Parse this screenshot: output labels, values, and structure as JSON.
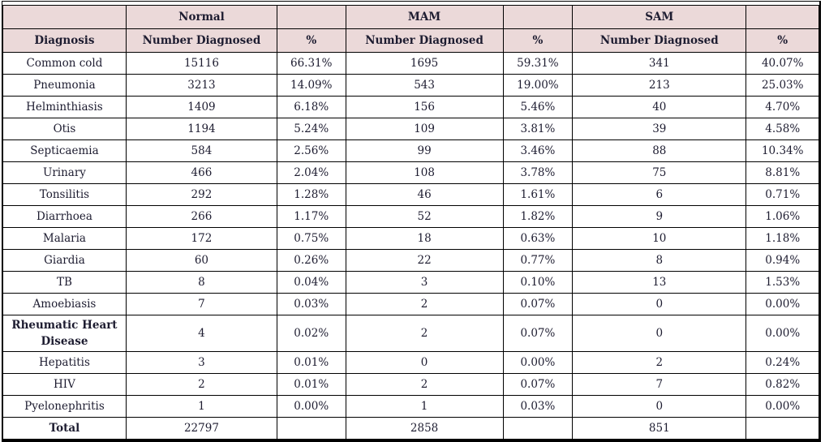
{
  "colors": {
    "header_bg": "#ebd9d9",
    "text": "#1d1c30",
    "border": "#000000"
  },
  "table": {
    "group_headers": [
      "",
      "Normal",
      "",
      "MAM",
      "",
      "SAM",
      ""
    ],
    "column_headers": [
      "Diagnosis",
      "Number Diagnosed",
      "%",
      "Number Diagnosed",
      "%",
      "Number Diagnosed",
      "%"
    ],
    "rows": [
      [
        "Common cold",
        "15116",
        "66.31%",
        "1695",
        "59.31%",
        "341",
        "40.07%"
      ],
      [
        "Pneumonia",
        "3213",
        "14.09%",
        "543",
        "19.00%",
        "213",
        "25.03%"
      ],
      [
        "Helminthiasis",
        "1409",
        "6.18%",
        "156",
        "5.46%",
        "40",
        "4.70%"
      ],
      [
        "Otis",
        "1194",
        "5.24%",
        "109",
        "3.81%",
        "39",
        "4.58%"
      ],
      [
        "Septicaemia",
        "584",
        "2.56%",
        "99",
        "3.46%",
        "88",
        "10.34%"
      ],
      [
        "Urinary",
        "466",
        "2.04%",
        "108",
        "3.78%",
        "75",
        "8.81%"
      ],
      [
        "Tonsilitis",
        "292",
        "1.28%",
        "46",
        "1.61%",
        "6",
        "0.71%"
      ],
      [
        "Diarrhoea",
        "266",
        "1.17%",
        "52",
        "1.82%",
        "9",
        "1.06%"
      ],
      [
        "Malaria",
        "172",
        "0.75%",
        "18",
        "0.63%",
        "10",
        "1.18%"
      ],
      [
        "Giardia",
        "60",
        "0.26%",
        "22",
        "0.77%",
        "8",
        "0.94%"
      ],
      [
        "TB",
        "8",
        "0.04%",
        "3",
        "0.10%",
        "13",
        "1.53%"
      ],
      [
        "Amoebiasis",
        "7",
        "0.03%",
        "2",
        "0.07%",
        "0",
        "0.00%"
      ],
      [
        "Rheumatic Heart Disease",
        "4",
        "0.02%",
        "2",
        "0.07%",
        "0",
        "0.00%"
      ],
      [
        "Hepatitis",
        "3",
        "0.01%",
        "0",
        "0.00%",
        "2",
        "0.24%"
      ],
      [
        "HIV",
        "2",
        "0.01%",
        "2",
        "0.07%",
        "7",
        "0.82%"
      ],
      [
        "Pyelonephritis",
        "1",
        "0.00%",
        "1",
        "0.03%",
        "0",
        "0.00%"
      ]
    ],
    "total_row": [
      "Total",
      "22797",
      "",
      "2858",
      "",
      "851",
      ""
    ],
    "emphasized_row_indices": [
      12
    ]
  }
}
